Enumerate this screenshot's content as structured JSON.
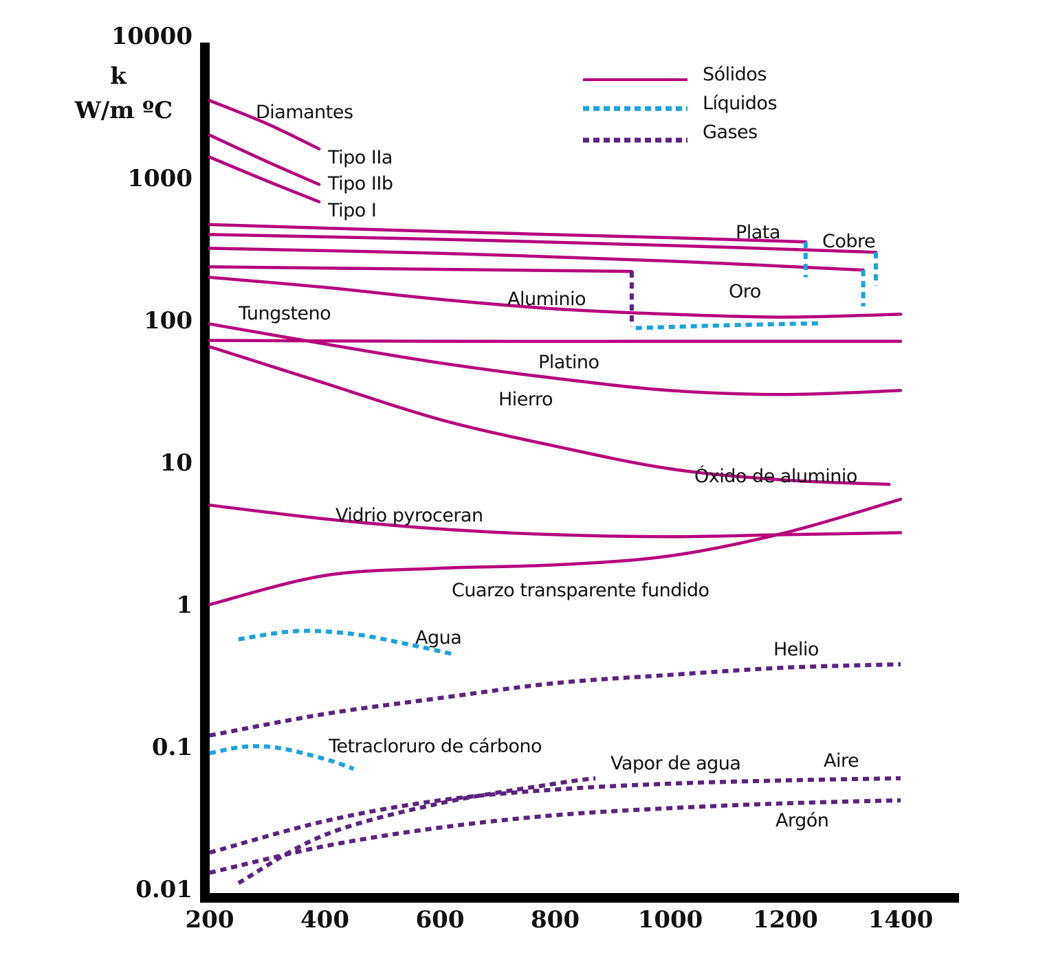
{
  "chart_data": {
    "type": "line",
    "title": "",
    "xlabel": "",
    "ylabel_line1": "k",
    "ylabel_line2": "W/m ºC",
    "x_ticks": [
      200,
      400,
      600,
      800,
      1000,
      1200,
      1400
    ],
    "y_ticks": [
      "10000",
      "1000",
      "100",
      "10",
      "1",
      "0.1",
      "0.01"
    ],
    "y_scale": "log",
    "xlim": [
      200,
      1400
    ],
    "ylim": [
      0.01,
      10000
    ],
    "grid": false,
    "legend_position": "top-right",
    "legend": [
      {
        "label": "Sólidos",
        "style": "solid",
        "color": "#b5007c"
      },
      {
        "label": "Líquidos",
        "style": "dotted",
        "color": "#1ba3dc"
      },
      {
        "label": "Gases",
        "style": "dotted",
        "color": "#5b2280"
      }
    ],
    "labels": {
      "diamantes": "Diamantes",
      "tipo_iia": "Tipo IIa",
      "tipo_iib": "Tipo IIb",
      "tipo_i": "Tipo I",
      "plata": "Plata",
      "cobre": "Cobre",
      "oro": "Oro",
      "aluminio": "Aluminio",
      "tungsteno": "Tungsteno",
      "platino": "Platino",
      "hierro": "Hierro",
      "oxido": "Óxido de aluminio",
      "vidrio": "Vidrio pyroceran",
      "cuarzo": "Cuarzo transparente fundido",
      "agua": "Agua",
      "helio": "Helio",
      "tetracloruro": "Tetracloruro de cárbono",
      "vapor": "Vapor de agua",
      "aire": "Aire",
      "argon": "Argón"
    },
    "series": [
      {
        "key": "tipo_iia",
        "style": "solid",
        "phase": "solid",
        "points": [
          [
            200,
            3500
          ],
          [
            300,
            2400
          ],
          [
            390,
            1600
          ]
        ]
      },
      {
        "key": "tipo_iib",
        "style": "solid",
        "phase": "solid",
        "points": [
          [
            200,
            2000
          ],
          [
            300,
            1300
          ],
          [
            390,
            900
          ]
        ]
      },
      {
        "key": "tipo_i",
        "style": "solid",
        "phase": "solid",
        "points": [
          [
            200,
            1400
          ],
          [
            300,
            950
          ],
          [
            390,
            680
          ]
        ]
      },
      {
        "key": "plata",
        "style": "solid",
        "phase": "solid",
        "points": [
          [
            200,
            470
          ],
          [
            600,
            420
          ],
          [
            1000,
            380
          ],
          [
            1235,
            355
          ]
        ]
      },
      {
        "key": "cobre",
        "style": "solid",
        "phase": "solid",
        "points": [
          [
            200,
            400
          ],
          [
            600,
            370
          ],
          [
            1000,
            335
          ],
          [
            1357,
            300
          ]
        ]
      },
      {
        "key": "oro",
        "style": "solid",
        "phase": "solid",
        "points": [
          [
            200,
            320
          ],
          [
            600,
            295
          ],
          [
            1000,
            260
          ],
          [
            1335,
            225
          ]
        ]
      },
      {
        "key": "aluminio",
        "style": "solid",
        "phase": "solid",
        "points": [
          [
            200,
            237
          ],
          [
            500,
            230
          ],
          [
            933,
            220
          ]
        ]
      },
      {
        "key": "tungsteno",
        "style": "solid",
        "phase": "solid",
        "points": [
          [
            200,
            200
          ],
          [
            400,
            170
          ],
          [
            600,
            140
          ],
          [
            800,
            120
          ],
          [
            1000,
            110
          ],
          [
            1200,
            105
          ],
          [
            1400,
            110
          ]
        ]
      },
      {
        "key": "platino",
        "style": "solid",
        "phase": "solid",
        "points": [
          [
            200,
            72
          ],
          [
            600,
            71
          ],
          [
            1000,
            71
          ],
          [
            1400,
            71
          ]
        ]
      },
      {
        "key": "hierro",
        "style": "solid",
        "phase": "solid",
        "points": [
          [
            200,
            94
          ],
          [
            400,
            68
          ],
          [
            600,
            50
          ],
          [
            800,
            39
          ],
          [
            1000,
            32
          ],
          [
            1200,
            30
          ],
          [
            1400,
            32
          ]
        ]
      },
      {
        "key": "oxido",
        "style": "solid",
        "phase": "solid",
        "points": [
          [
            200,
            65
          ],
          [
            400,
            36
          ],
          [
            600,
            20
          ],
          [
            800,
            13
          ],
          [
            1000,
            9
          ],
          [
            1200,
            7.5
          ],
          [
            1380,
            7
          ]
        ]
      },
      {
        "key": "vidrio",
        "style": "solid",
        "phase": "solid",
        "points": [
          [
            200,
            5
          ],
          [
            400,
            4
          ],
          [
            600,
            3.4
          ],
          [
            800,
            3.1
          ],
          [
            1000,
            3.0
          ],
          [
            1200,
            3.1
          ],
          [
            1400,
            3.2
          ]
        ]
      },
      {
        "key": "cuarzo",
        "style": "solid",
        "phase": "solid",
        "points": [
          [
            200,
            1.0
          ],
          [
            400,
            1.6
          ],
          [
            600,
            1.8
          ],
          [
            800,
            1.9
          ],
          [
            1000,
            2.2
          ],
          [
            1200,
            3.2
          ],
          [
            1400,
            5.5
          ]
        ]
      },
      {
        "key": "plata_liq",
        "style": "dotted",
        "phase": "liquid",
        "points": [
          [
            1235,
            355
          ],
          [
            1235,
            200
          ]
        ]
      },
      {
        "key": "cobre_liq",
        "style": "dotted",
        "phase": "liquid",
        "points": [
          [
            1357,
            300
          ],
          [
            1357,
            175
          ]
        ]
      },
      {
        "key": "oro_liq",
        "style": "dotted",
        "phase": "liquid",
        "points": [
          [
            1335,
            225
          ],
          [
            1335,
            125
          ]
        ]
      },
      {
        "key": "aluminio_liq",
        "style": "dotted",
        "phase": "liquid",
        "points": [
          [
            940,
            88
          ],
          [
            1100,
            92
          ],
          [
            1260,
            95
          ]
        ]
      },
      {
        "key": "agua",
        "style": "dotted",
        "phase": "liquid",
        "points": [
          [
            250,
            0.57
          ],
          [
            350,
            0.65
          ],
          [
            450,
            0.62
          ],
          [
            550,
            0.52
          ],
          [
            620,
            0.45
          ]
        ]
      },
      {
        "key": "tetracloruro",
        "style": "dotted",
        "phase": "liquid",
        "points": [
          [
            200,
            0.09
          ],
          [
            260,
            0.1
          ],
          [
            320,
            0.098
          ],
          [
            400,
            0.082
          ],
          [
            450,
            0.07
          ]
        ]
      },
      {
        "key": "aluminio_solid_to_liq",
        "style": "dotted",
        "phase": "gas",
        "points": [
          [
            933,
            220
          ],
          [
            933,
            90
          ]
        ]
      },
      {
        "key": "helio",
        "style": "dotted",
        "phase": "gas",
        "points": [
          [
            200,
            0.12
          ],
          [
            400,
            0.17
          ],
          [
            600,
            0.22
          ],
          [
            800,
            0.28
          ],
          [
            1000,
            0.32
          ],
          [
            1200,
            0.36
          ],
          [
            1400,
            0.38
          ]
        ]
      },
      {
        "key": "vapor",
        "style": "dotted",
        "phase": "gas",
        "points": [
          [
            250,
            0.011
          ],
          [
            400,
            0.024
          ],
          [
            600,
            0.04
          ],
          [
            800,
            0.055
          ],
          [
            870,
            0.06
          ]
        ]
      },
      {
        "key": "aire",
        "style": "dotted",
        "phase": "gas",
        "points": [
          [
            200,
            0.018
          ],
          [
            400,
            0.03
          ],
          [
            600,
            0.042
          ],
          [
            800,
            0.05
          ],
          [
            1000,
            0.055
          ],
          [
            1200,
            0.058
          ],
          [
            1400,
            0.06
          ]
        ]
      },
      {
        "key": "argon",
        "style": "dotted",
        "phase": "gas",
        "points": [
          [
            200,
            0.013
          ],
          [
            400,
            0.02
          ],
          [
            600,
            0.027
          ],
          [
            800,
            0.033
          ],
          [
            1000,
            0.037
          ],
          [
            1200,
            0.04
          ],
          [
            1400,
            0.042
          ]
        ]
      }
    ]
  }
}
